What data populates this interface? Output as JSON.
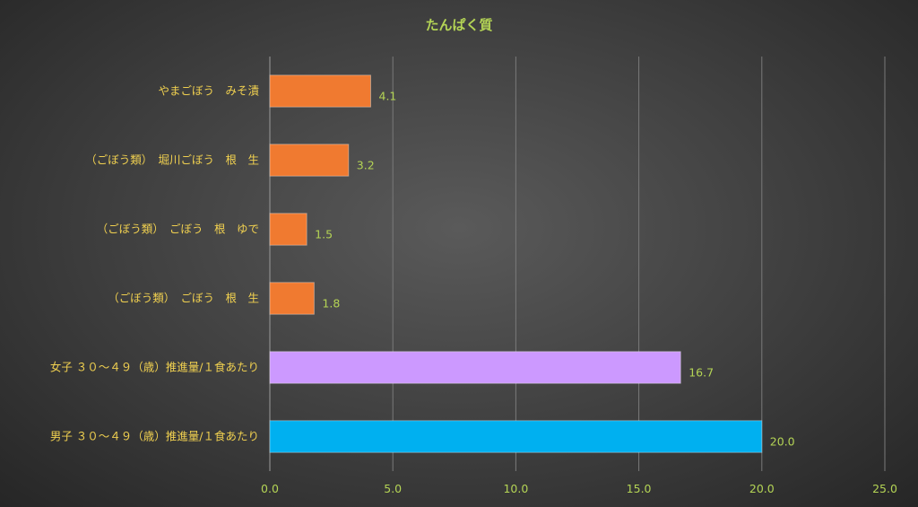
{
  "chart_data": {
    "type": "bar",
    "orientation": "horizontal",
    "title": "たんぱく質",
    "categories": [
      "やまごぼう　みそ漬",
      "（ごぼう類）　堀川ごぼう　根　生",
      "（ごぼう類）　ごぼう　根　ゆで",
      "（ごぼう類）　ごぼう　根　生",
      "女子 ３０～４９（歳）推進量/１食あたり",
      "男子 ３０～４９（歳）推進量/１食あたり"
    ],
    "values": [
      4.1,
      3.2,
      1.5,
      1.8,
      16.7,
      20.0
    ],
    "value_labels": [
      "4.1",
      "3.2",
      "1.5",
      "1.8",
      "16.7",
      "20.0"
    ],
    "bar_colors": [
      "#f07a30",
      "#f07a30",
      "#f07a30",
      "#f07a30",
      "#cc99ff",
      "#00b0f0"
    ],
    "xlim": [
      0,
      25
    ],
    "x_ticks": [
      0,
      5,
      10,
      15,
      20,
      25
    ],
    "x_tick_labels": [
      "0.0",
      "5.0",
      "10.0",
      "15.0",
      "20.0",
      "25.0"
    ],
    "grid": true,
    "legend": "none"
  }
}
